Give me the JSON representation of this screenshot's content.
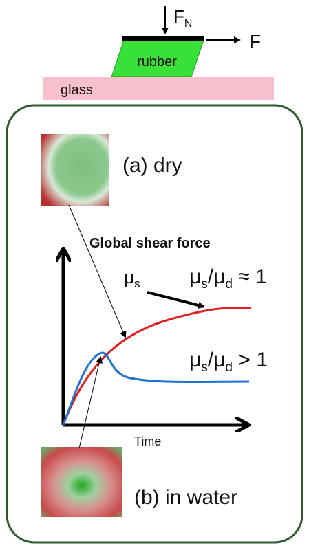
{
  "setup": {
    "normal_force": {
      "main": "F",
      "sub": "N"
    },
    "shear_force": "F",
    "rubber": "rubber",
    "glass": "glass"
  },
  "panel": {
    "dry_label": "(a) dry",
    "graph_title": "Global shear force",
    "mu_static": {
      "main": "μ",
      "sub": "s"
    },
    "ratio_dry": {
      "p1": "μ",
      "s1": "s",
      "p2": "/μ",
      "s2": "d",
      "tail": " ≈ 1"
    },
    "ratio_wet": {
      "p1": "μ",
      "s1": "s",
      "p2": "/μ",
      "s2": "d",
      "tail": " > 1"
    },
    "x_axis_label": "Time",
    "wet_label": "(b) in water"
  }
}
